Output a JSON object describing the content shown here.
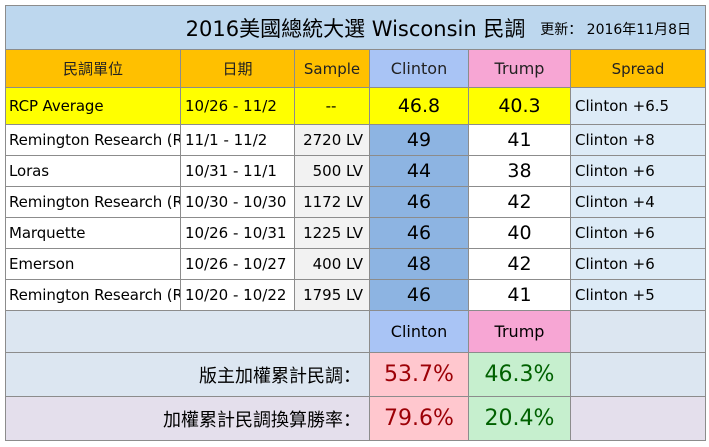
{
  "title": {
    "main": "2016美國總統大選  Wisconsin 民調",
    "updated_label": "更新：",
    "updated_date": "2016年11月8日"
  },
  "headers": {
    "pollster": "民調單位",
    "date": "日期",
    "sample": "Sample",
    "clinton": "Clinton",
    "trump": "Trump",
    "spread": "Spread"
  },
  "rows": [
    {
      "pollster": "RCP Average",
      "date": "10/26 - 11/2",
      "sample": "--",
      "clinton": "46.8",
      "trump": "40.3",
      "spread": "Clinton +6.5"
    },
    {
      "pollster": "Remington Research (R)",
      "date": "11/1 - 11/2",
      "sample": "2720 LV",
      "clinton": "49",
      "trump": "41",
      "spread": "Clinton +8"
    },
    {
      "pollster": "Loras",
      "date": "10/31 - 11/1",
      "sample": "500 LV",
      "clinton": "44",
      "trump": "38",
      "spread": "Clinton +6"
    },
    {
      "pollster": "Remington Research (R)",
      "date": "10/30 - 10/30",
      "sample": "1172 LV",
      "clinton": "46",
      "trump": "42",
      "spread": "Clinton +4"
    },
    {
      "pollster": "Marquette",
      "date": "10/26 - 10/31",
      "sample": "1225 LV",
      "clinton": "46",
      "trump": "40",
      "spread": "Clinton +6"
    },
    {
      "pollster": "Emerson",
      "date": "10/26 - 10/27",
      "sample": "400 LV",
      "clinton": "48",
      "trump": "42",
      "spread": "Clinton +6"
    },
    {
      "pollster": "Remington Research (R)",
      "date": "10/20 - 10/22",
      "sample": "1795 LV",
      "clinton": "46",
      "trump": "41",
      "spread": "Clinton +5"
    }
  ],
  "summary_headers": {
    "clinton": "Clinton",
    "trump": "Trump"
  },
  "weighted_poll": {
    "label": "版主加權累計民調：",
    "clinton": "53.7%",
    "trump": "46.3%"
  },
  "win_rate": {
    "label": "加權累計民調換算勝率：",
    "clinton": "79.6%",
    "trump": "20.4%"
  },
  "colors": {
    "header_orange": "#ffc000",
    "clinton_blue": "#8db4e2",
    "trump_pink": "#f7a6d4",
    "rcp_yellow": "#ffff00",
    "clinton_result_red": "#9c0006",
    "trump_result_green": "#006100"
  }
}
